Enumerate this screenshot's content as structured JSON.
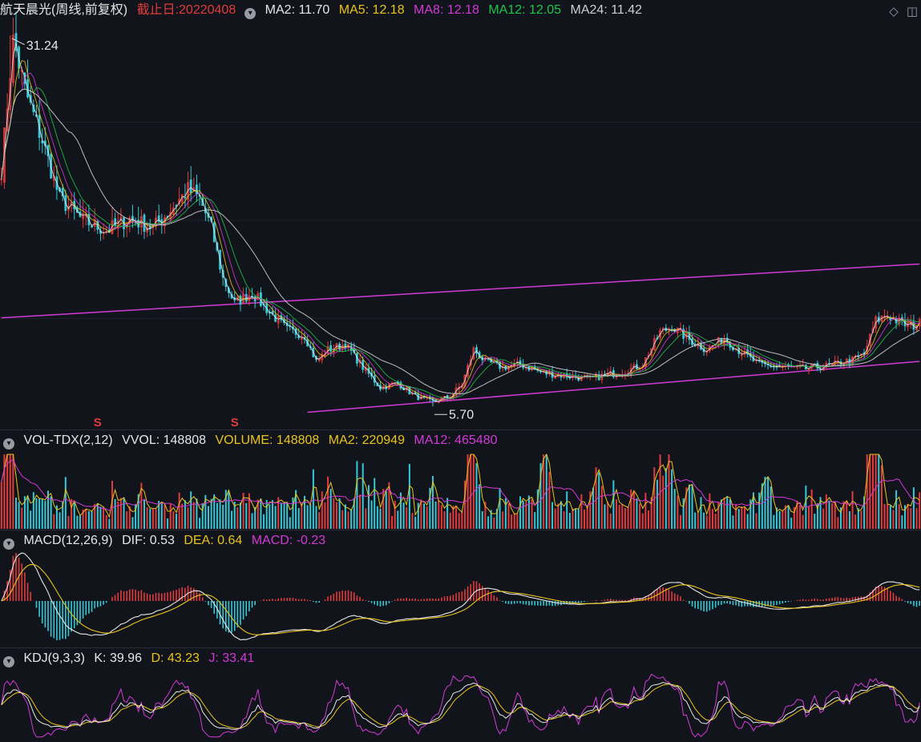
{
  "header": {
    "name": "航天晨光",
    "mode": "(周线,前复权)",
    "date_label": "截止日:20220408",
    "ma": [
      {
        "label": "MA2: 11.70",
        "color": "#e6e6e6"
      },
      {
        "label": "MA5: 12.18",
        "color": "#e8c41c"
      },
      {
        "label": "MA8: 12.18",
        "color": "#d23ad6"
      },
      {
        "label": "MA12: 12.05",
        "color": "#1fc44a"
      },
      {
        "label": "MA24: 11.42",
        "color": "#cfcfcf"
      }
    ]
  },
  "annotations": {
    "high": "31.24",
    "low": "5.70",
    "marker": "S"
  },
  "volume": {
    "title": "VOL-TDX(2,12)",
    "vvol": "VVOL: 148808",
    "volume": "VOLUME: 148808",
    "ma2": "MA2: 220949",
    "ma12": "MA12: 465480"
  },
  "macd": {
    "title": "MACD(12,26,9)",
    "dif": "DIF: 0.53",
    "dea": "DEA: 0.64",
    "macd": "MACD: -0.23"
  },
  "kdj": {
    "title": "KDJ(9,3,3)",
    "k": "K: 39.96",
    "d": "D: 43.23",
    "j": "J: 33.41"
  },
  "icons": {
    "diamond": "diamond-icon",
    "layout": "panel-layout-icon",
    "collapse": "chevron-down-icon"
  },
  "colors": {
    "up": "#e23b3b",
    "down": "#36c8d6",
    "channel": "#d23ad6",
    "background": "#12141c"
  },
  "chart_data": [
    {
      "type": "candlestick",
      "panel": "price",
      "period": "weekly",
      "as_of": "20220408",
      "high": 31.24,
      "low": 5.7,
      "ylim": [
        5.0,
        32.0
      ],
      "close_path": [
        [
          0,
          22.0
        ],
        [
          4,
          31.0
        ],
        [
          8,
          27.5
        ],
        [
          14,
          24.0
        ],
        [
          20,
          20.0
        ],
        [
          28,
          18.5
        ],
        [
          36,
          17.8
        ],
        [
          44,
          18.6
        ],
        [
          52,
          18.0
        ],
        [
          58,
          19.2
        ],
        [
          64,
          20.6
        ],
        [
          68,
          20.0
        ],
        [
          72,
          18.0
        ],
        [
          76,
          14.5
        ],
        [
          80,
          12.8
        ],
        [
          86,
          13.5
        ],
        [
          92,
          12.2
        ],
        [
          98,
          11.0
        ],
        [
          104,
          10.6
        ],
        [
          108,
          8.8
        ],
        [
          112,
          9.6
        ],
        [
          118,
          10.0
        ],
        [
          124,
          8.4
        ],
        [
          130,
          7.0
        ],
        [
          136,
          7.3
        ],
        [
          142,
          6.4
        ],
        [
          148,
          6.0
        ],
        [
          154,
          6.4
        ],
        [
          158,
          7.2
        ],
        [
          162,
          9.6
        ],
        [
          166,
          8.8
        ],
        [
          172,
          8.4
        ],
        [
          178,
          8.6
        ],
        [
          186,
          8.0
        ],
        [
          194,
          7.8
        ],
        [
          202,
          7.6
        ],
        [
          208,
          7.9
        ],
        [
          214,
          8.1
        ],
        [
          220,
          8.6
        ],
        [
          226,
          10.8
        ],
        [
          230,
          11.2
        ],
        [
          236,
          10.3
        ],
        [
          242,
          9.6
        ],
        [
          248,
          10.4
        ],
        [
          254,
          9.4
        ],
        [
          260,
          8.6
        ],
        [
          268,
          8.4
        ],
        [
          276,
          8.3
        ],
        [
          284,
          8.5
        ],
        [
          292,
          8.9
        ],
        [
          296,
          9.3
        ],
        [
          300,
          11.6
        ],
        [
          304,
          12.0
        ],
        [
          308,
          11.5
        ],
        [
          312,
          11.2
        ],
        [
          315,
          11.4
        ]
      ],
      "ma_lines": [
        {
          "name": "MA2",
          "value": 11.7,
          "color": "#e6e6e6"
        },
        {
          "name": "MA5",
          "value": 12.18,
          "color": "#e8c41c"
        },
        {
          "name": "MA8",
          "value": 12.18,
          "color": "#d23ad6"
        },
        {
          "name": "MA12",
          "value": 12.05,
          "color": "#1fc44a"
        },
        {
          "name": "MA24",
          "value": 11.42,
          "color": "#cfcfcf"
        }
      ],
      "channel": {
        "upper": [
          [
            0,
            11.8
          ],
          [
            315,
            15.5
          ]
        ],
        "lower": [
          [
            105,
            5.3
          ],
          [
            315,
            8.8
          ]
        ]
      },
      "markers": [
        {
          "label": "S",
          "week": 33
        },
        {
          "label": "S",
          "week": 80
        }
      ]
    },
    {
      "type": "bar",
      "panel": "volume",
      "series": [
        "VOLUME",
        "MA2",
        "MA12"
      ],
      "last": {
        "VOLUME": 148808,
        "MA2": 220949,
        "MA12": 465480
      }
    },
    {
      "type": "bar",
      "panel": "macd",
      "params": [
        12,
        26,
        9
      ],
      "last": {
        "DIF": 0.53,
        "DEA": 0.64,
        "MACD": -0.23
      }
    },
    {
      "type": "line",
      "panel": "kdj",
      "params": [
        9,
        3,
        3
      ],
      "last": {
        "K": 39.96,
        "D": 43.23,
        "J": 33.41
      }
    }
  ]
}
